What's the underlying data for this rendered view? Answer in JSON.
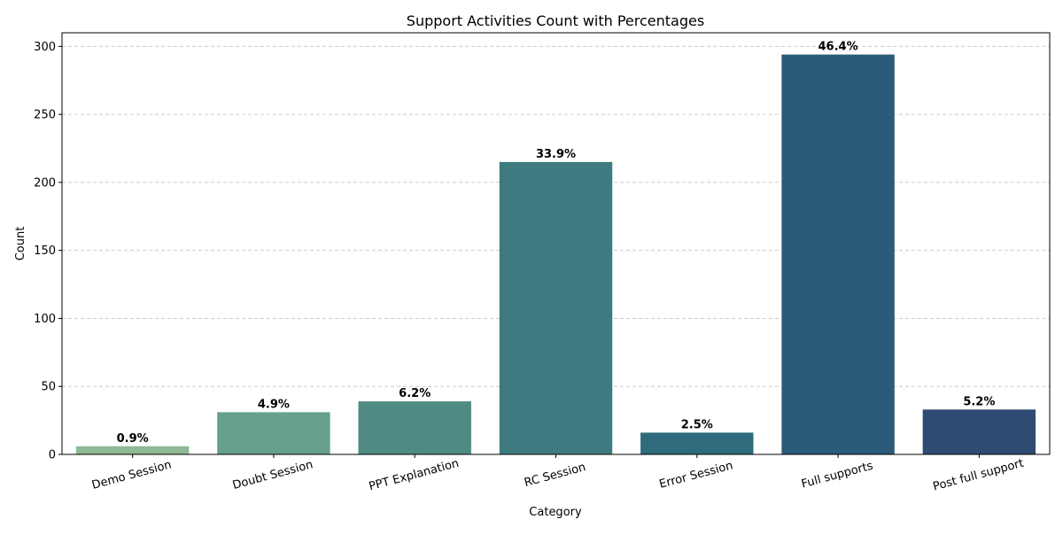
{
  "chart_data": {
    "type": "bar",
    "title": "Support Activities Count with Percentages",
    "xlabel": "Category",
    "ylabel": "Count",
    "ylim": [
      0,
      310
    ],
    "yticks": [
      0,
      50,
      100,
      150,
      200,
      250,
      300
    ],
    "grid": "y-dashed",
    "categories": [
      "Demo Session",
      "Doubt Session",
      "PPT Explanation",
      "RC Session",
      "Error Session",
      "Full supports",
      "Post full support"
    ],
    "values": [
      6,
      31,
      39,
      215,
      16,
      294,
      33
    ],
    "percent_labels": [
      "0.9%",
      "4.9%",
      "6.2%",
      "33.9%",
      "2.5%",
      "46.4%",
      "5.2%"
    ],
    "colors": [
      "#8dba94",
      "#67a18c",
      "#508b83",
      "#3e7b80",
      "#2e6b7d",
      "#2c5a79",
      "#304b73"
    ]
  }
}
